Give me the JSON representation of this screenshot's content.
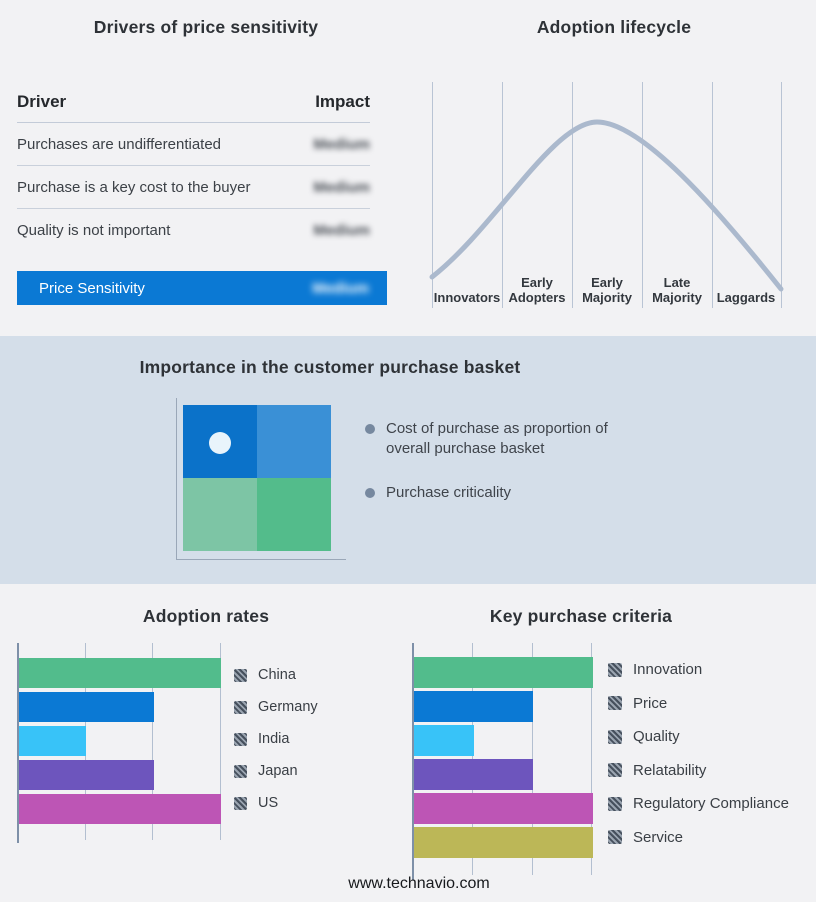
{
  "colors": {
    "page_bg": "#f2f2f4",
    "band_bg": "#d4dee9",
    "accent_blue": "#0b79d4"
  },
  "footer": {
    "url": "www.technavio.com"
  },
  "chart_data": [
    {
      "id": "drivers_of_price_sensitivity",
      "type": "table",
      "title": "Drivers of price sensitivity",
      "columns": [
        "Driver",
        "Impact"
      ],
      "rows": [
        [
          "Purchases are undifferentiated",
          "Medium"
        ],
        [
          "Purchase is a key cost to the buyer",
          "Medium"
        ],
        [
          "Quality is not important",
          "Medium"
        ]
      ],
      "summary_row": [
        "Price Sensitivity",
        "Medium"
      ],
      "note": "impact values are rendered blurred in the source image"
    },
    {
      "id": "adoption_lifecycle",
      "type": "line",
      "title": "Adoption lifecycle",
      "categories": [
        "Innovators",
        "Early Adopters",
        "Early Majority",
        "Late Majority",
        "Laggards"
      ],
      "shape": "bell curve rising from Innovators, peaking in Early Majority, falling to Laggards",
      "curve_color": "#abb9cd",
      "grid": true,
      "legend_position": "none"
    },
    {
      "id": "purchase_basket_quadrant",
      "type": "heatmap",
      "title": "Importance in the customer purchase basket",
      "cell_colors": [
        "#0b72c9",
        "#3a90d6",
        "#7dc5a5",
        "#53bc8b"
      ],
      "marker": {
        "quadrant": "top-left",
        "color": "#e9f4fb"
      },
      "annotations": [
        "Cost of purchase as proportion of overall purchase basket",
        "Purchase criticality"
      ]
    },
    {
      "id": "adoption_rates",
      "type": "bar",
      "orientation": "horizontal",
      "title": "Adoption rates",
      "categories": [
        "China",
        "Germany",
        "India",
        "Japan",
        "US"
      ],
      "values": [
        3,
        2,
        1,
        2,
        3
      ],
      "colors": [
        "#52bc8c",
        "#0b79d4",
        "#38c3f8",
        "#6d55bd",
        "#bd55b5"
      ],
      "xlim": [
        0,
        3
      ],
      "grid": true,
      "legend_position": "right"
    },
    {
      "id": "key_purchase_criteria",
      "type": "bar",
      "orientation": "horizontal",
      "title": "Key purchase criteria",
      "categories": [
        "Innovation",
        "Price",
        "Quality",
        "Relatability",
        "Regulatory Compliance",
        "Service"
      ],
      "values": [
        3,
        2,
        1,
        2,
        3,
        3
      ],
      "colors": [
        "#52bc8c",
        "#0b79d4",
        "#38c3f8",
        "#6d55bd",
        "#bd55b5",
        "#bcb757"
      ],
      "xlim": [
        0,
        3
      ],
      "grid": true,
      "legend_position": "right"
    }
  ]
}
